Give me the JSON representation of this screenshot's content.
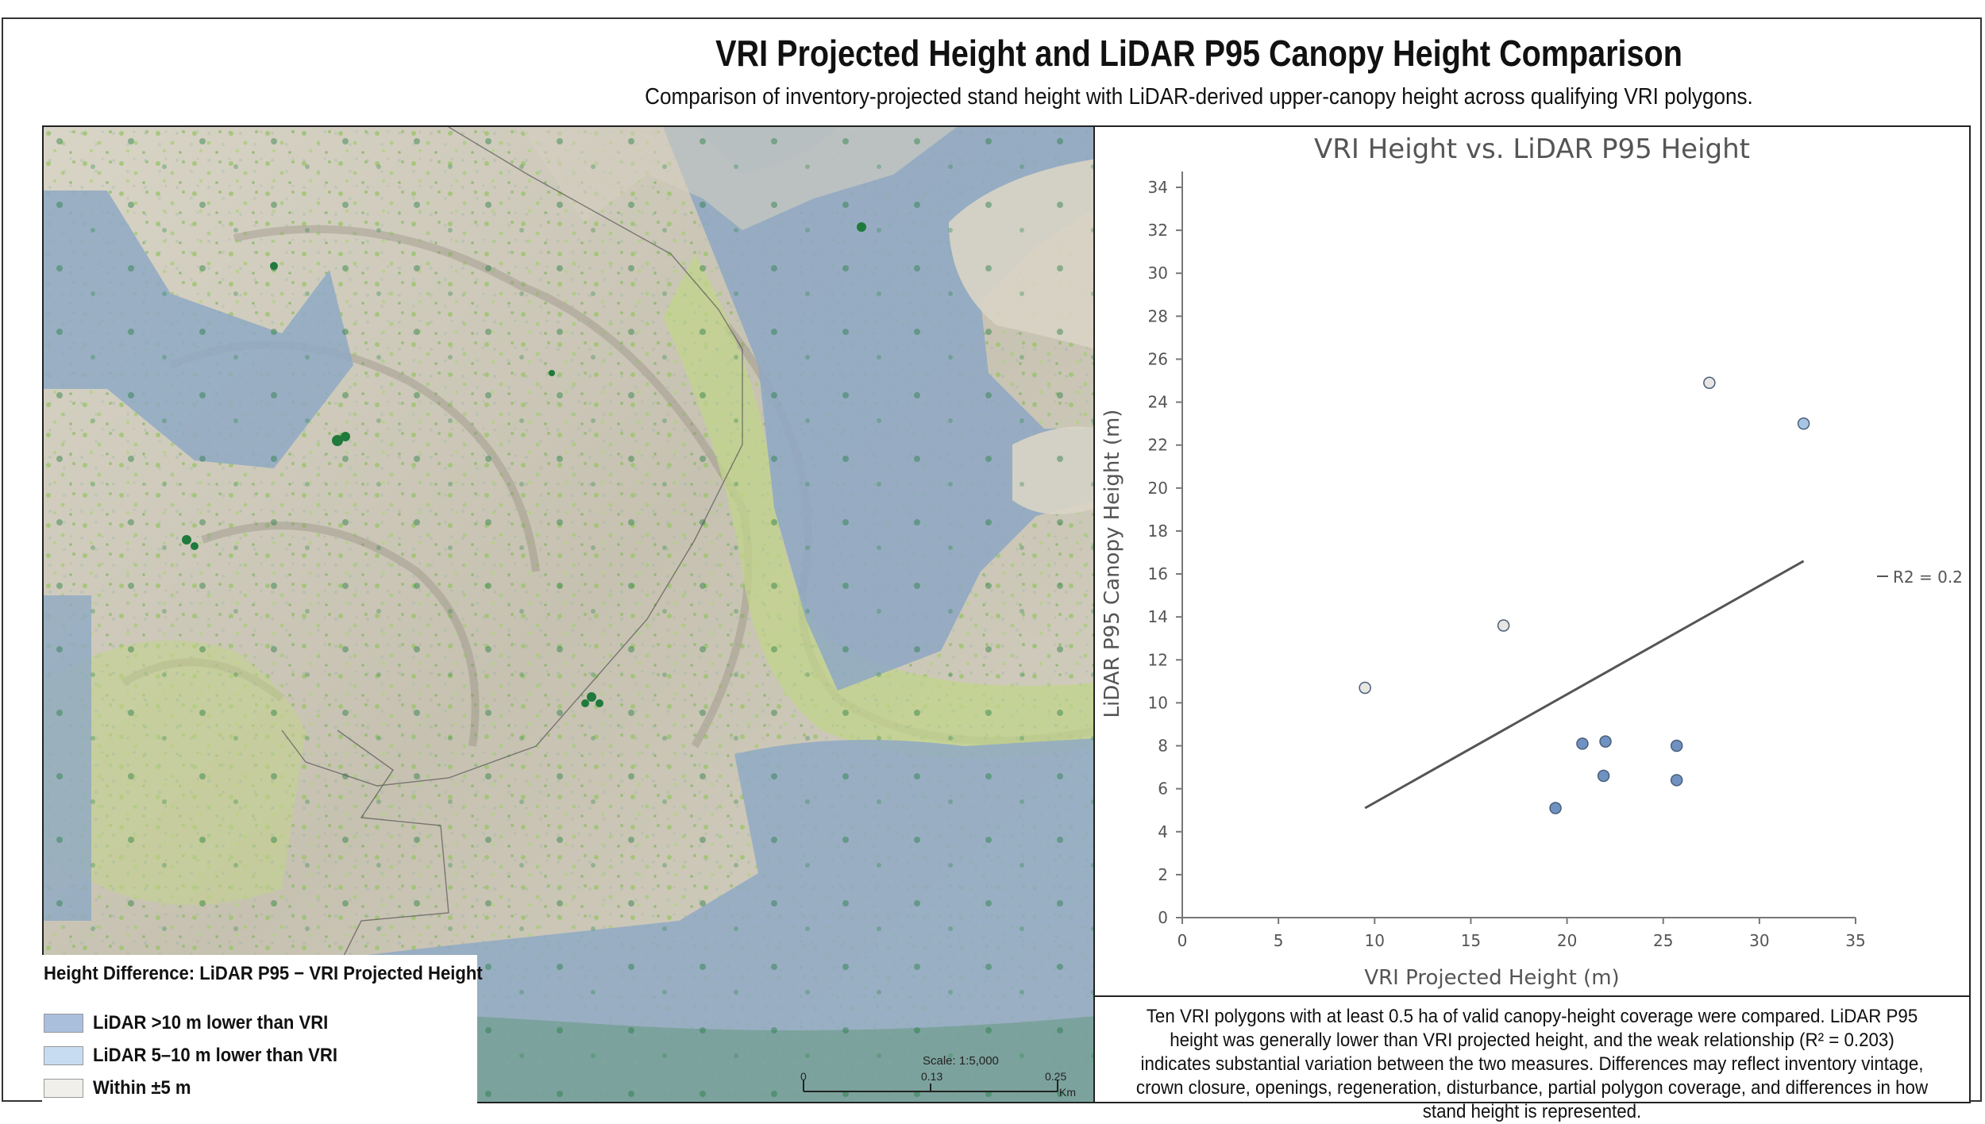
{
  "title": "VRI Projected Height and LiDAR P95 Canopy Height Comparison",
  "subtitle": "Comparison of inventory-projected stand height with LiDAR-derived upper-canopy height across qualifying VRI polygons.",
  "legend": {
    "title": "Height Difference: LiDAR P95 − VRI Projected Height",
    "items": [
      {
        "label": "LiDAR >10 m lower than VRI",
        "color": "#a9bfdc"
      },
      {
        "label": "LiDAR 5–10 m lower than VRI",
        "color": "#c7dcf0"
      },
      {
        "label": "Within ±5 m",
        "color": "#f1efea"
      }
    ]
  },
  "scale": {
    "label": "Scale: 1:5,000",
    "ticks": [
      "0",
      "0.13",
      "0.25"
    ],
    "unit": "Km"
  },
  "map_colors": {
    "terrain": "#cbc6b7",
    "vegetation_light": "#c2d48b",
    "vegetation_mid": "#94c06a",
    "vegetation_dark": "#1f7a3c",
    "over_10_lower": "#8fa9c4",
    "over_10_lower_green": "#6f9c8d"
  },
  "chart_data": {
    "type": "scatter",
    "title": "VRI Height vs. LiDAR P95 Height",
    "xlabel": "VRI Projected Height (m)",
    "ylabel": "LiDAR P95 Canopy Height (m)",
    "xlim": [
      0,
      35
    ],
    "ylim": [
      0,
      34
    ],
    "xticks": [
      0,
      5,
      10,
      15,
      20,
      25,
      30,
      35
    ],
    "yticks": [
      0,
      2,
      4,
      6,
      8,
      10,
      12,
      14,
      16,
      18,
      20,
      22,
      24,
      26,
      28,
      30,
      32,
      34
    ],
    "points": [
      {
        "x": 9.5,
        "y": 10.7,
        "class": "within"
      },
      {
        "x": 16.7,
        "y": 13.6,
        "class": "within"
      },
      {
        "x": 27.4,
        "y": 24.9,
        "class": "within"
      },
      {
        "x": 32.3,
        "y": 23.0,
        "class": "lower5"
      },
      {
        "x": 19.4,
        "y": 5.1,
        "class": "lower10"
      },
      {
        "x": 20.8,
        "y": 8.1,
        "class": "lower10"
      },
      {
        "x": 22.0,
        "y": 8.2,
        "class": "lower10"
      },
      {
        "x": 21.9,
        "y": 6.6,
        "class": "lower10"
      },
      {
        "x": 25.7,
        "y": 8.0,
        "class": "lower10"
      },
      {
        "x": 25.7,
        "y": 6.4,
        "class": "lower10"
      }
    ],
    "point_colors": {
      "within": "#e8e6e2",
      "lower5": "#a8c6e4",
      "lower10": "#6f92c2"
    },
    "trendline": {
      "x1": 9.5,
      "y1": 5.1,
      "x2": 32.3,
      "y2": 16.6,
      "label": "R2 = 0.2",
      "color": "#555555"
    },
    "grid": false,
    "legend": "right"
  },
  "note": "Ten VRI polygons with at least 0.5 ha of valid canopy-height coverage were compared. LiDAR P95 height was generally lower than VRI projected height, and the weak relationship (R² = 0.203) indicates substantial variation between the two measures. Differences may reflect inventory vintage, crown closure, openings, regeneration, disturbance, partial polygon coverage, and differences in how stand height is represented."
}
